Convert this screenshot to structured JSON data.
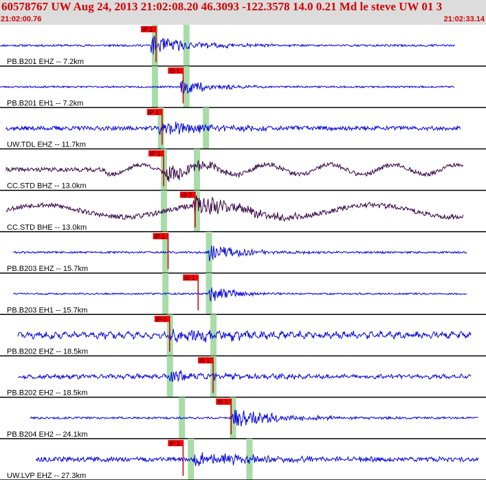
{
  "header": {
    "title": "60578767 UW Aug 24, 2013 21:02:08.20    46.3093 -122.3578 14.0 0.21 Md le steve UW 01   3",
    "start_time": "21:02:00.76",
    "end_time": "21:02:33.14"
  },
  "colors": {
    "header_bg": "#dcdcdc",
    "header_text": "#d40000",
    "trace_blue": "#0000dd",
    "trace_dark": "#330044",
    "pick_box": "#ff0000",
    "pick_line": "#cc0000",
    "band": "#a8dca8",
    "separator": "#000000"
  },
  "chart_data": {
    "type": "line",
    "title": "",
    "xlabel": "",
    "ylabel": "",
    "time_range": [
      "21:02:00.76",
      "21:02:33.14"
    ],
    "x_units": "seconds from window start",
    "xlim": [
      0,
      32.38
    ],
    "grid": false,
    "traces": [
      {
        "label": "PB.B201 EHZ -- 7.2km",
        "color": "#0000dd",
        "trace_start": 0.0,
        "trace_end": 30.3,
        "bands": [
          {
            "t": 10.3
          },
          {
            "t": 12.4
          }
        ],
        "picks": [
          {
            "label": "iP 1",
            "t": 10.4
          }
        ],
        "onset": 10.0,
        "noise": 0.06,
        "burst": 0.55,
        "decay": 3.0,
        "wave_amp": 0,
        "wave_period": 4,
        "wave_start": 0,
        "seed": 11
      },
      {
        "label": "PB.B201 EH1 -- 7.2km",
        "color": "#0000dd",
        "trace_start": 0.0,
        "trace_end": 30.3,
        "bands": [
          {
            "t": 10.3
          },
          {
            "t": 12.4
          }
        ],
        "picks": [
          {
            "label": "iS 1",
            "t": 12.2
          }
        ],
        "onset": 12.0,
        "noise": 0.05,
        "burst": 0.5,
        "decay": 2.2,
        "wave_amp": 0,
        "wave_period": 4,
        "wave_start": 0,
        "seed": 23
      },
      {
        "label": "UW.TDL EHZ -- 11.7km",
        "color": "#0000dd",
        "trace_start": 0.4,
        "trace_end": 30.7,
        "bands": [
          {
            "t": 10.7
          },
          {
            "t": 13.7
          }
        ],
        "picks": [
          {
            "label": "iP 1",
            "t": 10.8
          }
        ],
        "onset": 10.6,
        "noise": 0.12,
        "burst": 0.4,
        "decay": 4.0,
        "wave_amp": 0,
        "wave_period": 4,
        "wave_start": 0,
        "seed": 37
      },
      {
        "label": "CC.STD BHZ -- 13.0km",
        "color": "#330044",
        "trace_start": 0.4,
        "trace_end": 30.9,
        "bands": [
          {
            "t": 10.9
          },
          {
            "t": 13.1
          }
        ],
        "picks": [
          {
            "label": "iP 1",
            "t": 10.9
          }
        ],
        "onset": 10.8,
        "noise": 0.12,
        "burst": 0.55,
        "decay": 3.0,
        "wave_amp": 0.28,
        "wave_period": 4.2,
        "wave_start": 7,
        "seed": 41
      },
      {
        "label": "CC.STD BHE -- 13.0km",
        "color": "#330044",
        "trace_start": 0.4,
        "trace_end": 30.9,
        "bands": [
          {
            "t": 10.9
          },
          {
            "t": 13.1
          }
        ],
        "picks": [
          {
            "label": "iS 2",
            "t": 13.0
          }
        ],
        "onset": 12.9,
        "noise": 0.14,
        "burst": 0.6,
        "decay": 4.0,
        "wave_amp": 0.35,
        "wave_period": 11,
        "wave_start": 0,
        "seed": 53
      },
      {
        "label": "PB.B203 EHZ -- 15.7km",
        "color": "#0000dd",
        "trace_start": 0.9,
        "trace_end": 31.1,
        "bands": [
          {
            "t": 11.0
          },
          {
            "t": 13.9
          }
        ],
        "picks": [
          {
            "label": "iP 1",
            "t": 11.2
          }
        ],
        "onset": 13.9,
        "noise": 0.06,
        "burst": 0.55,
        "decay": 2.2,
        "wave_amp": 0,
        "wave_period": 4,
        "wave_start": 0,
        "seed": 61
      },
      {
        "label": "PB.B203 EH1 -- 15.7km",
        "color": "#0000dd",
        "trace_start": 0.9,
        "trace_end": 31.1,
        "bands": [
          {
            "t": 11.0
          },
          {
            "t": 13.9
          }
        ],
        "picks": [
          {
            "label": "iS 1",
            "t": 13.2
          }
        ],
        "onset": 13.9,
        "noise": 0.05,
        "burst": 0.5,
        "decay": 1.8,
        "wave_amp": 0,
        "wave_period": 4,
        "wave_start": 0,
        "seed": 73
      },
      {
        "label": "PB.B202 EHZ -- 18.5km",
        "color": "#0000dd",
        "trace_start": 1.2,
        "trace_end": 31.4,
        "bands": [
          {
            "t": 11.3
          },
          {
            "t": 14.2
          }
        ],
        "picks": [
          {
            "label": "iP 0",
            "t": 11.3
          }
        ],
        "onset": 11.3,
        "noise": 0.14,
        "burst": 0.35,
        "decay": 5.0,
        "wave_amp": 0.1,
        "wave_period": 0.6,
        "wave_start": 0,
        "seed": 83
      },
      {
        "label": "PB.B202 EH2 -- 18.5km",
        "color": "#0000dd",
        "trace_start": 1.2,
        "trace_end": 31.4,
        "bands": [
          {
            "t": 11.3
          },
          {
            "t": 14.2
          }
        ],
        "picks": [
          {
            "label": "iS 1",
            "t": 14.2
          }
        ],
        "onset": 11.3,
        "noise": 0.1,
        "burst": 0.3,
        "decay": 4.0,
        "wave_amp": 0.05,
        "wave_period": 0.6,
        "wave_start": 0,
        "seed": 97
      },
      {
        "label": "PB.B204 EH2 -- 24.1km",
        "color": "#0000dd",
        "trace_start": 2.0,
        "trace_end": 31.9,
        "bands": [
          {
            "t": 12.1
          },
          {
            "t": 15.5
          }
        ],
        "picks": [
          {
            "label": "iS 1",
            "t": 15.4
          }
        ],
        "onset": 15.4,
        "noise": 0.06,
        "burst": 0.6,
        "decay": 3.0,
        "wave_amp": 0,
        "wave_period": 4,
        "wave_start": 0,
        "seed": 101
      },
      {
        "label": "UW.LVP EHZ -- 27.3km",
        "color": "#0000dd",
        "trace_start": 2.4,
        "trace_end": 31.9,
        "bands": [
          {
            "t": 12.7
          },
          {
            "t": 16.6
          }
        ],
        "picks": [
          {
            "label": "iP 1",
            "t": 12.2
          }
        ],
        "onset": 12.6,
        "noise": 0.13,
        "burst": 0.4,
        "decay": 5.0,
        "wave_amp": 0,
        "wave_period": 4,
        "wave_start": 0,
        "seed": 113
      }
    ]
  }
}
